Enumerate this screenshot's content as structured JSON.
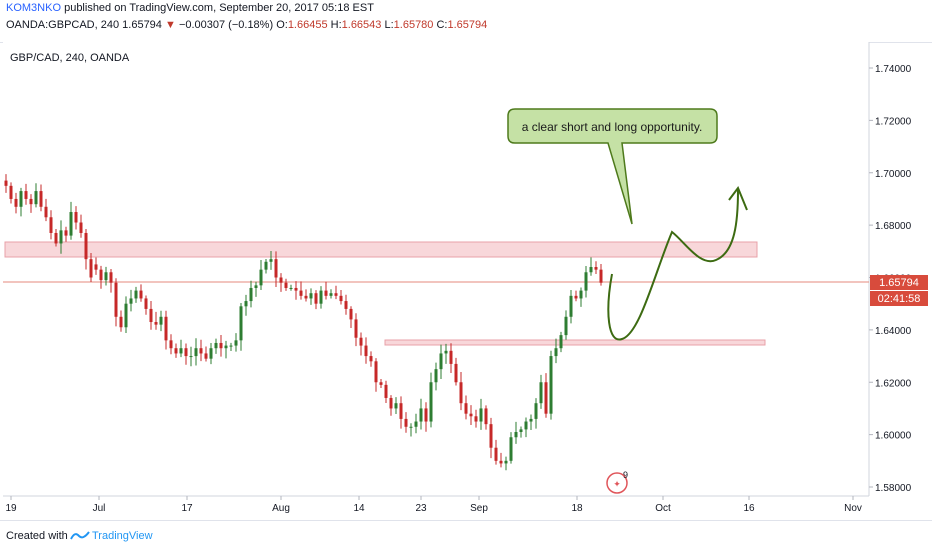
{
  "header": {
    "author": "KOM3NKO",
    "published_text": "published on TradingView.com, September 20, 2017 05:18 EST",
    "symbol": "OANDA:GBPCAD, 240",
    "last": "1.65794",
    "change_arrow": "▼",
    "change": "−0.00307 (−0.18%)",
    "o_label": "O:",
    "o_value": "1.66455",
    "h_label": "H:",
    "h_value": "1.66543",
    "l_label": "L:",
    "l_value": "1.65780",
    "c_label": "C:",
    "c_value": "1.65794"
  },
  "chart_data": {
    "type": "candlestick",
    "title": "GBP/CAD, 240, OANDA",
    "annotation": "a clear short and long opportunity.",
    "y_ticks": [
      "1.74000",
      "1.72000",
      "1.70000",
      "1.68000",
      "1.66000",
      "1.64000",
      "1.62000",
      "1.60000",
      "1.58000"
    ],
    "ylim": [
      1.575,
      1.749
    ],
    "x_ticks": [
      "19",
      "Jul",
      "17",
      "Aug",
      "14",
      "23",
      "Sep",
      "18",
      "Oct",
      "16",
      "Nov"
    ],
    "last_price_label": "1.65794",
    "countdown_label": "02:41:58",
    "event_badge": "9",
    "zones": [
      {
        "name": "resistance-zone",
        "from": 1.667,
        "to": 1.673
      },
      {
        "name": "support-zone",
        "from": 1.6338,
        "to": 1.635
      }
    ],
    "colors": {
      "up": "#2e7d32",
      "down": "#c62828",
      "zone": "#f8d7da",
      "annotation": "#c5e1a5",
      "price_label": "#d84b3c",
      "arrow": "#3d6b12"
    },
    "series": [
      {
        "x": [
          0,
          5,
          10,
          15,
          20,
          25,
          30,
          35,
          40,
          45,
          50,
          55,
          60,
          65,
          70,
          75,
          80,
          85
        ],
        "close": [
          1.695,
          1.69,
          1.687,
          1.693,
          1.69,
          1.688,
          1.693,
          1.687,
          1.683,
          1.677,
          1.673,
          1.678,
          1.676,
          1.685,
          1.681,
          1.677,
          1.667,
          1.66
        ]
      },
      {
        "x": [
          90,
          95,
          100,
          105,
          110,
          115,
          120,
          125,
          130,
          135,
          140,
          145,
          150,
          155,
          160,
          165,
          170,
          175,
          180,
          185,
          190,
          195,
          200,
          205,
          210,
          215,
          220,
          225,
          230,
          235,
          240,
          245,
          250,
          255,
          260,
          265,
          270,
          275,
          280,
          285,
          290,
          295,
          300,
          305,
          310,
          315,
          320,
          325,
          330,
          335,
          340,
          345,
          350,
          355,
          360,
          365,
          370,
          375,
          380,
          385,
          390,
          395,
          400,
          405,
          410,
          415,
          420,
          425,
          430,
          435,
          440,
          445,
          450,
          455,
          460,
          465,
          470,
          475,
          480,
          485,
          490,
          495,
          500,
          505,
          510,
          515,
          520,
          525,
          530,
          535,
          540,
          545,
          550,
          555,
          560,
          565,
          570,
          575,
          580,
          585,
          590,
          595
        ],
        "close": [
          1.663,
          1.659,
          1.662,
          1.658,
          1.645,
          1.641,
          1.65,
          1.652,
          1.655,
          1.652,
          1.648,
          1.643,
          1.642,
          1.645,
          1.636,
          1.633,
          1.631,
          1.633,
          1.63,
          1.63,
          1.633,
          1.631,
          1.629,
          1.633,
          1.635,
          1.633,
          1.634,
          1.634,
          1.636,
          1.649,
          1.651,
          1.656,
          1.657,
          1.663,
          1.666,
          1.667,
          1.66,
          1.658,
          1.656,
          1.656,
          1.655,
          1.653,
          1.652,
          1.654,
          1.65,
          1.655,
          1.653,
          1.654,
          1.653,
          1.651,
          1.648,
          1.644,
          1.637,
          1.634,
          1.63,
          1.628,
          1.62,
          1.619,
          1.614,
          1.61,
          1.612,
          1.606,
          1.603,
          1.603,
          1.605,
          1.61,
          1.605,
          1.62,
          1.625,
          1.631,
          1.632,
          1.627,
          1.62,
          1.612,
          1.608,
          1.607,
          1.605,
          1.61,
          1.604,
          1.595,
          1.59,
          1.589,
          1.59,
          1.599,
          1.601,
          1.602,
          1.605,
          1.606,
          1.612,
          1.62,
          1.608,
          1.63,
          1.633,
          1.638,
          1.645,
          1.653,
          1.652,
          1.655,
          1.662,
          1.664,
          1.663,
          1.658
        ]
      }
    ]
  }
}
